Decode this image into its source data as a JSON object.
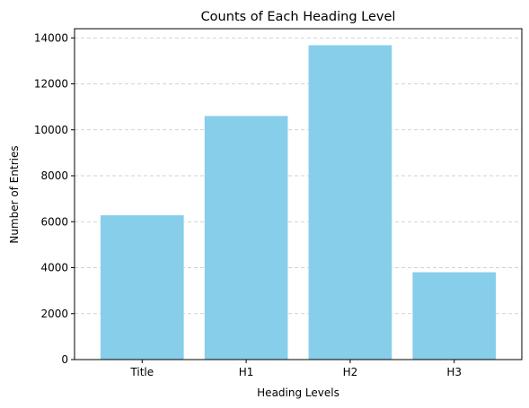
{
  "chart_data": {
    "type": "bar",
    "title": "Counts of Each Heading Level",
    "xlabel": "Heading Levels",
    "ylabel": "Number of Entries",
    "categories": [
      "Title",
      "H1",
      "H2",
      "H3"
    ],
    "values": [
      6280,
      10600,
      13680,
      3800
    ],
    "ylim": [
      0,
      14400
    ],
    "yticks": [
      0,
      2000,
      4000,
      6000,
      8000,
      10000,
      12000,
      14000
    ],
    "bar_color": "#87ceeb",
    "grid": {
      "axis": "y",
      "style": "dashed",
      "color": "#c4c4c4"
    }
  }
}
